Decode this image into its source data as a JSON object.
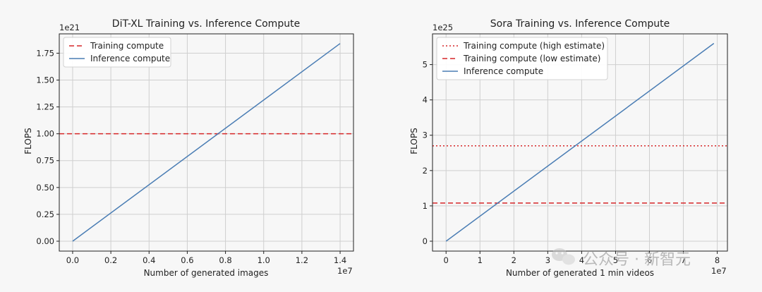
{
  "chart_data": [
    {
      "type": "line",
      "title": "DiT-XL Training vs. Inference Compute",
      "xlabel": "Number of generated images",
      "ylabel": "FLOPS",
      "x_offset_label": "1e7",
      "y_offset_label": "1e21",
      "xlim": [
        -0.07,
        1.47
      ],
      "ylim": [
        -0.092,
        1.93
      ],
      "xticks": [
        0.0,
        0.2,
        0.4,
        0.6,
        0.8,
        1.0,
        1.2,
        1.4
      ],
      "xtick_labels": [
        "0.0",
        "0.2",
        "0.4",
        "0.6",
        "0.8",
        "1.0",
        "1.2",
        "1.4"
      ],
      "yticks": [
        0.0,
        0.25,
        0.5,
        0.75,
        1.0,
        1.25,
        1.5,
        1.75
      ],
      "ytick_labels": [
        "0.00",
        "0.25",
        "0.50",
        "0.75",
        "1.00",
        "1.25",
        "1.50",
        "1.75"
      ],
      "grid": true,
      "legend_position": "top-left",
      "series": [
        {
          "name": "Training compute",
          "kind": "hline",
          "y": 1.0,
          "style": "dashed",
          "color": "#d62728"
        },
        {
          "name": "Inference compute",
          "kind": "line",
          "x": [
            0.0,
            1.4
          ],
          "y": [
            0.0,
            1.84
          ],
          "style": "solid",
          "color": "#4a7db4"
        }
      ]
    },
    {
      "type": "line",
      "title": "Sora Training vs. Inference Compute",
      "xlabel": "Number of generated 1 min videos",
      "ylabel": "FLOPS",
      "x_offset_label": "1e7",
      "y_offset_label": "1e25",
      "xlim": [
        -0.4,
        8.3
      ],
      "ylim": [
        -0.28,
        5.87
      ],
      "xticks": [
        0,
        1,
        2,
        3,
        4,
        5,
        6,
        7,
        8
      ],
      "xtick_labels": [
        "0",
        "1",
        "2",
        "3",
        "4",
        "5",
        "6",
        "7",
        "8"
      ],
      "yticks": [
        0,
        1,
        2,
        3,
        4,
        5
      ],
      "ytick_labels": [
        "0",
        "1",
        "2",
        "3",
        "4",
        "5"
      ],
      "grid": true,
      "legend_position": "top-left",
      "series": [
        {
          "name": "Training compute (high estimate)",
          "kind": "hline",
          "y": 2.7,
          "style": "dotted",
          "color": "#d62728"
        },
        {
          "name": "Training compute (low estimate)",
          "kind": "hline",
          "y": 1.08,
          "style": "dashed",
          "color": "#d62728"
        },
        {
          "name": "Inference compute",
          "kind": "line",
          "x": [
            0.0,
            7.9
          ],
          "y": [
            0.0,
            5.6
          ],
          "style": "solid",
          "color": "#4a7db4"
        }
      ]
    }
  ],
  "watermark": {
    "text": "公众号 · 新智元",
    "icon": "wechat-icon"
  }
}
